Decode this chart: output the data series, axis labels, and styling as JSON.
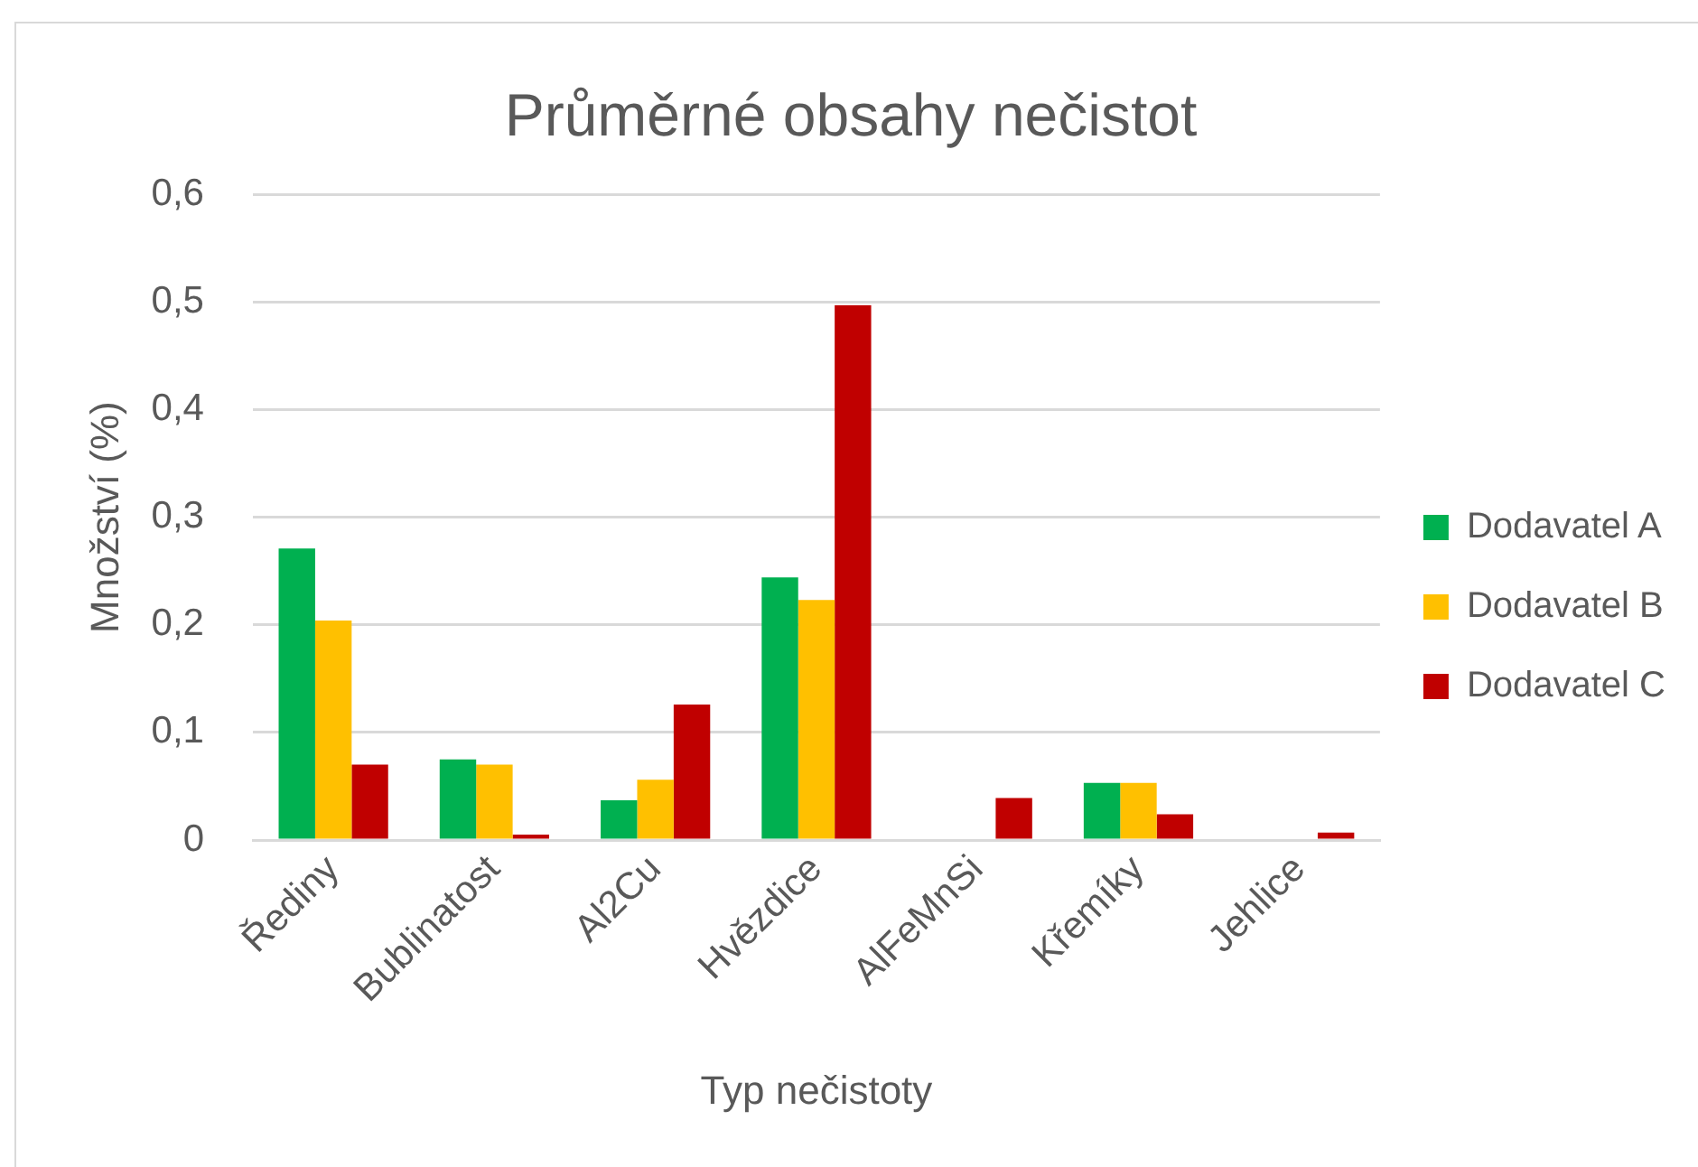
{
  "chart_data": {
    "type": "bar",
    "title": "Průměrné obsahy nečistot",
    "xlabel": "Typ nečistoty",
    "ylabel": "Množství (%)",
    "categories": [
      "Řediny",
      "Bublinatost",
      "Al2Cu",
      "Hvězdice",
      "AlFeMnSi",
      "Křemíky",
      "Jehlice"
    ],
    "series": [
      {
        "name": "Dodavatel A",
        "color": "#00b050",
        "values": [
          0.271,
          0.075,
          0.037,
          0.244,
          0,
          0.053,
          0
        ]
      },
      {
        "name": "Dodavatel B",
        "color": "#ffc000",
        "values": [
          0.204,
          0.07,
          0.056,
          0.223,
          0,
          0.053,
          0
        ]
      },
      {
        "name": "Dodavatel C",
        "color": "#c00000",
        "values": [
          0.07,
          0.005,
          0.126,
          0.497,
          0.039,
          0.024,
          0.007
        ]
      }
    ],
    "ylim": [
      0,
      0.6
    ],
    "yticks": [
      0,
      {
        "value": 0.1,
        "label": "0,1"
      },
      {
        "value": 0.2,
        "label": "0,2"
      },
      {
        "value": 0.3,
        "label": "0,3"
      },
      {
        "value": 0.4,
        "label": "0,4"
      },
      {
        "value": 0.5,
        "label": "0,5"
      },
      {
        "value": 0.6,
        "label": "0,6"
      }
    ],
    "grid": "y",
    "legend": "right"
  }
}
